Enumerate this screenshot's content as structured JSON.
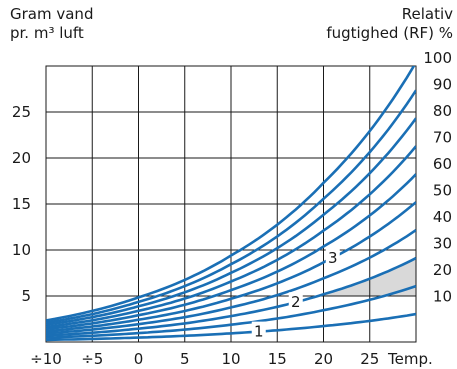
{
  "chart_data": {
    "type": "line",
    "title": "",
    "ylabel_left": [
      "Gram vand",
      "pr. m³ luft"
    ],
    "ylabel_right": [
      "Relativ",
      "fugtighed (RF) %"
    ],
    "xlabel": "Temp.",
    "x_ticks": [
      "÷10",
      "÷5",
      "0",
      "5",
      "10",
      "15",
      "20",
      "25"
    ],
    "y_ticks": [
      "5",
      "10",
      "15",
      "20",
      "25"
    ],
    "rh_ticks": [
      "10",
      "20",
      "30",
      "40",
      "50",
      "60",
      "70",
      "80",
      "90",
      "100"
    ],
    "xlim": [
      -10,
      30
    ],
    "ylim": [
      0,
      30
    ],
    "grid": true,
    "series_color": "#1a6fb5",
    "band_color": "#d9d9d9",
    "series": [
      {
        "rh": 10,
        "x": [
          -10,
          0,
          10,
          20,
          30
        ],
        "y": [
          0.23,
          0.48,
          0.94,
          1.73,
          3.04
        ]
      },
      {
        "rh": 20,
        "x": [
          -10,
          0,
          10,
          20,
          30
        ],
        "y": [
          0.47,
          0.97,
          1.88,
          3.46,
          6.08
        ]
      },
      {
        "rh": 30,
        "x": [
          -10,
          0,
          10,
          20,
          30
        ],
        "y": [
          0.7,
          1.45,
          2.82,
          5.19,
          9.12
        ]
      },
      {
        "rh": 40,
        "x": [
          -10,
          0,
          10,
          20,
          30
        ],
        "y": [
          0.94,
          1.94,
          3.76,
          6.92,
          12.16
        ]
      },
      {
        "rh": 50,
        "x": [
          -10,
          0,
          10,
          20,
          30
        ],
        "y": [
          1.17,
          2.42,
          4.7,
          8.65,
          15.2
        ]
      },
      {
        "rh": 60,
        "x": [
          -10,
          0,
          10,
          20,
          30
        ],
        "y": [
          1.41,
          2.91,
          5.64,
          10.38,
          18.24
        ]
      },
      {
        "rh": 70,
        "x": [
          -10,
          0,
          10,
          20,
          30
        ],
        "y": [
          1.64,
          3.39,
          6.58,
          12.11,
          21.28
        ]
      },
      {
        "rh": 80,
        "x": [
          -10,
          0,
          10,
          20,
          30
        ],
        "y": [
          1.88,
          3.88,
          7.52,
          13.84,
          24.32
        ]
      },
      {
        "rh": 90,
        "x": [
          -10,
          0,
          10,
          20,
          30
        ],
        "y": [
          2.11,
          4.36,
          8.46,
          15.57,
          27.36
        ]
      },
      {
        "rh": 100,
        "x": [
          -10,
          0,
          10,
          20,
          30
        ],
        "y": [
          2.35,
          4.85,
          9.4,
          17.3,
          30.4
        ]
      }
    ],
    "shaded_band": {
      "y_range": [
        5,
        10
      ],
      "x_range": [
        10,
        30
      ]
    },
    "markers": [
      {
        "label": "1",
        "x": 13
      },
      {
        "label": "2",
        "x": 17
      },
      {
        "label": "3",
        "x": 21
      }
    ]
  }
}
